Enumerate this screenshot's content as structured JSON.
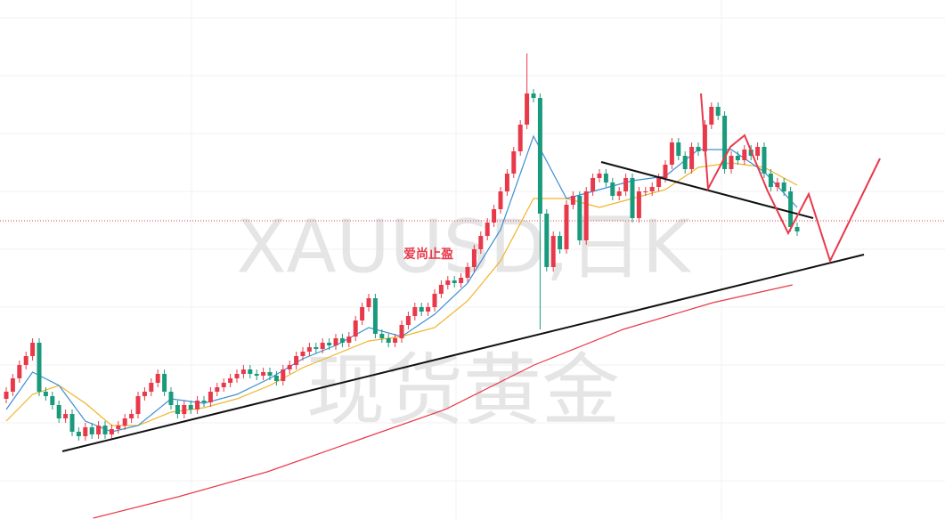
{
  "chart_data": {
    "type": "candlestick",
    "watermark": [
      "XAUUSD,日K",
      "现货黄金"
    ],
    "annotation": "爱尚止盈",
    "up_color": "#e8394a",
    "down_color": "#1a9a7c",
    "ylim": [
      0,
      583
    ],
    "open": [
      135,
      143,
      158,
      173,
      183,
      198,
      143,
      138,
      128,
      113,
      118,
      98,
      93,
      103,
      95,
      105,
      95,
      101,
      105,
      113,
      118,
      138,
      143,
      153,
      163,
      143,
      128,
      118,
      128,
      123,
      133,
      131,
      143,
      148,
      153,
      158,
      163,
      168,
      163,
      161,
      165,
      161,
      155,
      168,
      173,
      183,
      188,
      193,
      191,
      198,
      195,
      203,
      198,
      205,
      223,
      238,
      248,
      208,
      203,
      198,
      203,
      218,
      228,
      238,
      233,
      238,
      253,
      263,
      268,
      265,
      271,
      283,
      303,
      318,
      333,
      348,
      368,
      388,
      413,
      443,
      478,
      473,
      343,
      283,
      318,
      303,
      353,
      363,
      313,
      368,
      383,
      388,
      378,
      363,
      368,
      383,
      338,
      368,
      368,
      373,
      383,
      398,
      423,
      408,
      393,
      418,
      413,
      443,
      463,
      453,
      393,
      408,
      403,
      415,
      408,
      418,
      388,
      373,
      378,
      368,
      328
    ],
    "high": [
      148,
      163,
      178,
      188,
      203,
      203,
      148,
      143,
      133,
      123,
      123,
      103,
      108,
      108,
      110,
      110,
      106,
      110,
      118,
      123,
      143,
      148,
      158,
      168,
      168,
      148,
      133,
      133,
      133,
      138,
      138,
      148,
      153,
      158,
      163,
      168,
      173,
      173,
      168,
      170,
      170,
      166,
      173,
      178,
      188,
      193,
      198,
      198,
      203,
      203,
      208,
      208,
      210,
      228,
      243,
      253,
      253,
      213,
      208,
      208,
      223,
      233,
      243,
      243,
      243,
      258,
      268,
      273,
      273,
      276,
      288,
      308,
      323,
      338,
      353,
      373,
      393,
      418,
      448,
      523,
      483,
      478,
      348,
      323,
      323,
      358,
      368,
      368,
      373,
      388,
      393,
      393,
      383,
      373,
      388,
      388,
      373,
      373,
      378,
      388,
      403,
      428,
      428,
      413,
      423,
      423,
      448,
      468,
      468,
      458,
      413,
      413,
      420,
      420,
      423,
      423,
      393,
      383,
      383,
      373,
      333
    ],
    "low": [
      130,
      138,
      153,
      168,
      178,
      138,
      133,
      123,
      108,
      108,
      93,
      88,
      88,
      90,
      90,
      90,
      90,
      96,
      100,
      108,
      113,
      133,
      138,
      148,
      138,
      123,
      113,
      113,
      118,
      118,
      126,
      126,
      138,
      143,
      148,
      153,
      158,
      158,
      156,
      156,
      156,
      150,
      150,
      163,
      168,
      178,
      183,
      186,
      186,
      190,
      190,
      193,
      193,
      200,
      218,
      233,
      203,
      198,
      193,
      193,
      198,
      213,
      223,
      228,
      228,
      233,
      248,
      258,
      260,
      260,
      266,
      278,
      298,
      313,
      328,
      343,
      363,
      383,
      408,
      438,
      468,
      213,
      278,
      278,
      298,
      298,
      348,
      308,
      308,
      363,
      378,
      373,
      358,
      358,
      363,
      333,
      333,
      363,
      363,
      368,
      378,
      393,
      403,
      388,
      388,
      408,
      408,
      438,
      448,
      388,
      388,
      398,
      398,
      403,
      403,
      383,
      368,
      368,
      363,
      323,
      318
    ],
    "close": [
      143,
      158,
      173,
      183,
      198,
      143,
      138,
      128,
      113,
      118,
      98,
      93,
      103,
      95,
      105,
      95,
      101,
      105,
      113,
      118,
      138,
      143,
      153,
      163,
      143,
      128,
      118,
      128,
      123,
      133,
      131,
      143,
      148,
      153,
      158,
      163,
      168,
      163,
      161,
      165,
      161,
      155,
      168,
      173,
      183,
      188,
      193,
      191,
      198,
      195,
      203,
      198,
      205,
      223,
      238,
      248,
      208,
      203,
      198,
      203,
      218,
      228,
      238,
      233,
      238,
      253,
      263,
      268,
      265,
      271,
      283,
      303,
      318,
      333,
      348,
      368,
      388,
      413,
      443,
      478,
      473,
      343,
      283,
      318,
      303,
      353,
      363,
      313,
      368,
      383,
      388,
      378,
      363,
      368,
      383,
      338,
      368,
      368,
      373,
      383,
      398,
      423,
      408,
      393,
      418,
      413,
      443,
      463,
      453,
      393,
      408,
      403,
      415,
      408,
      418,
      388,
      373,
      378,
      368,
      328,
      323
    ],
    "overlays": [
      {
        "color": "#e8394a",
        "x": [
          13.2,
          26.1,
          39.6,
          53.1,
          66.6,
          80.1,
          93.6,
          107.2,
          119.3
        ],
        "values": [
          1,
          25,
          53,
          88,
          123,
          173,
          213,
          243,
          263
        ]
      },
      {
        "color": "#f0b429",
        "x": [
          0,
          4,
          8,
          12,
          16,
          20,
          25,
          30,
          35,
          40,
          45,
          50,
          55,
          60,
          65,
          70,
          75,
          80,
          85,
          90,
          95,
          100,
          105,
          110,
          115,
          120
        ],
        "values": [
          110,
          140,
          150,
          130,
          105,
          105,
          120,
          125,
          135,
          150,
          170,
          185,
          200,
          205,
          215,
          245,
          290,
          360,
          360,
          350,
          360,
          370,
          395,
          400,
          395,
          375
        ]
      },
      {
        "color": "#3d8fd6",
        "x": [
          0,
          4,
          8,
          12,
          16,
          20,
          25,
          30,
          35,
          40,
          45,
          50,
          55,
          60,
          65,
          70,
          75,
          80,
          85,
          90,
          95,
          100,
          105,
          110,
          115,
          120
        ],
        "values": [
          123,
          165,
          150,
          110,
          98,
          105,
          135,
          130,
          140,
          158,
          180,
          195,
          215,
          205,
          230,
          265,
          325,
          430,
          360,
          370,
          380,
          385,
          415,
          415,
          390,
          350
        ]
      }
    ]
  }
}
